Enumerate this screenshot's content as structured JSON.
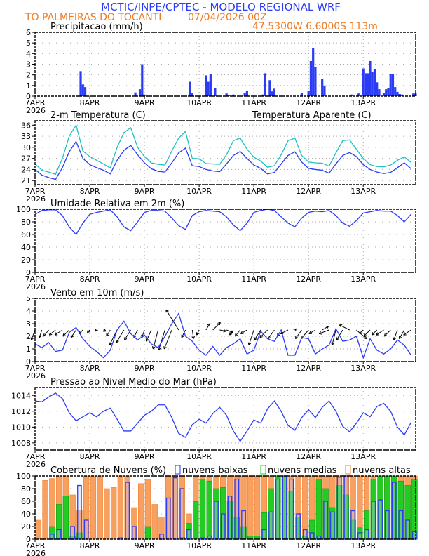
{
  "header": {
    "title": "MCTIC/INPE/CPTEC - MODELO REGIONAL WRF",
    "location": "TO PALMEIRAS DO TOCANTI",
    "run": "07/04/2026 00Z",
    "coords": "47.5300W 6.6000S 113m"
  },
  "colors": {
    "title": "#2a3cf5",
    "orange_text": "#f07a20",
    "blue": "#2a3cf5",
    "cyan": "#20c0c0",
    "green": "#22cc22",
    "orange": "#f7a060",
    "orange_edge": "#f08030"
  },
  "x_axis": {
    "labels": [
      "7APR",
      "8APR",
      "9APR",
      "10APR",
      "11APR",
      "12APR",
      "13APR"
    ],
    "label_hours": [
      0,
      24,
      48,
      72,
      96,
      120,
      144
    ],
    "year": "2026",
    "hours_total": 167
  },
  "chart_data": [
    {
      "id": "precip",
      "type": "bar",
      "title": "Precipitacao (mm/h)",
      "ylim": [
        0,
        6
      ],
      "y_ticks": [
        0,
        1,
        2,
        3,
        4,
        5,
        6
      ],
      "hours": [
        20,
        21,
        22,
        44,
        46,
        47,
        48,
        68,
        69,
        75,
        76,
        77,
        79,
        84,
        85,
        87,
        92,
        93,
        100,
        101,
        103,
        104,
        105,
        117,
        120,
        121,
        122,
        123,
        126,
        127,
        139,
        142,
        144,
        145,
        146,
        147,
        148,
        149,
        150,
        151,
        153,
        154,
        155,
        156,
        157,
        158,
        159,
        160,
        161,
        166,
        167
      ],
      "values": [
        2.35,
        1.1,
        0.85,
        0.35,
        0.65,
        3.0,
        0.15,
        1.35,
        0.3,
        1.95,
        1.35,
        2.1,
        0.75,
        0.25,
        0.1,
        0.15,
        0.3,
        0.5,
        0.15,
        2.15,
        1.5,
        0.45,
        0.7,
        0.3,
        0.5,
        3.3,
        4.55,
        2.75,
        1.65,
        1.0,
        0.15,
        0.25,
        2.6,
        2.15,
        2.15,
        3.3,
        2.3,
        2.55,
        1.3,
        0.65,
        0.3,
        0.65,
        0.75,
        2.05,
        2.05,
        0.85,
        0.4,
        0.2,
        0.15,
        0.25,
        0.25
      ]
    },
    {
      "id": "temp",
      "type": "line",
      "title": "2-m Temperatura (C)",
      "legend": "Temperatura Aparente (C)",
      "ylim": [
        19.9,
        37.2
      ],
      "y_ticks": [
        21,
        24,
        27,
        30,
        33,
        36
      ],
      "step_hours": 3,
      "series": [
        {
          "name": "Temperatura",
          "values": [
            24,
            22.5,
            21.8,
            21.3,
            24.5,
            28.8,
            31.6,
            27.0,
            25.3,
            24.5,
            23.8,
            22.8,
            26.5,
            29.2,
            30.5,
            28.0,
            25.8,
            24.2,
            23.5,
            23.3,
            25.8,
            28.5,
            29.8,
            25.0,
            24.8,
            24.0,
            23.6,
            23.4,
            25.5,
            27.8,
            28.9,
            27.0,
            25.2,
            24.3,
            22.8,
            23.2,
            25.5,
            27.8,
            28.8,
            26.0,
            24.3,
            24.0,
            23.8,
            23.0,
            25.5,
            27.8,
            28.6,
            27.5,
            25.3,
            24.0,
            23.3,
            22.9,
            23.2,
            24.5,
            25.8,
            24.2
          ]
        },
        {
          "name": "Temperatura Aparente",
          "values": [
            25.5,
            23.8,
            23.3,
            22.7,
            27,
            33,
            36,
            29,
            27.5,
            26.5,
            25.5,
            24.4,
            30,
            34,
            35.3,
            30,
            27.5,
            25.8,
            25.4,
            25.2,
            29,
            32.5,
            34.3,
            27,
            26.9,
            25.6,
            25.5,
            25.4,
            28,
            31.8,
            32.5,
            29.5,
            27.3,
            26.3,
            24.6,
            25,
            28,
            31.8,
            32.5,
            27.8,
            26,
            25.8,
            25.7,
            24.9,
            28.5,
            31.8,
            32,
            29.5,
            27,
            25.3,
            24.8,
            24.7,
            25.2,
            26.5,
            27.4,
            25.9
          ]
        }
      ]
    },
    {
      "id": "rh",
      "type": "line",
      "title": "Umidade Relativa em 2m (%)",
      "ylim": [
        0,
        100
      ],
      "y_ticks": [
        0,
        20,
        40,
        60,
        80,
        100
      ],
      "step_hours": 3,
      "series": [
        {
          "name": "Umidade",
          "values": [
            92,
            98,
            99,
            99,
            90,
            72,
            60,
            78,
            92,
            95,
            97,
            99,
            88,
            72,
            66,
            80,
            95,
            98,
            98,
            97,
            86,
            74,
            68,
            90,
            96,
            98,
            97,
            96,
            88,
            75,
            66,
            78,
            95,
            98,
            100,
            98,
            88,
            78,
            72,
            86,
            95,
            97,
            96,
            98,
            90,
            78,
            73,
            82,
            94,
            96,
            98,
            97,
            97,
            90,
            80,
            92
          ]
        }
      ]
    },
    {
      "id": "wind",
      "type": "line",
      "title": "Vento em 10m (m/s)",
      "ylim": [
        0,
        5
      ],
      "y_ticks": [
        0,
        1,
        2,
        3,
        4,
        5
      ],
      "step_hours": 3,
      "arrow_base": 2.5,
      "series": [
        {
          "name": "Velocidade",
          "values": [
            1.4,
            1.1,
            1.5,
            0.8,
            0.9,
            2.3,
            2.7,
            1.8,
            1.2,
            0.8,
            0.3,
            0.9,
            2.5,
            3.2,
            2.2,
            1.7,
            2.1,
            1.4,
            1.1,
            2.0,
            3.0,
            3.8,
            2.0,
            1.6,
            0.9,
            0.5,
            1.2,
            0.5,
            1.1,
            1.4,
            1.8,
            0.6,
            0.9,
            2.4,
            1.8,
            1.6,
            2.5,
            0.5,
            0.5,
            1.9,
            1.8,
            0.6,
            1.0,
            1.3,
            2.6,
            1.6,
            1.7,
            2.0,
            0.3,
            1.8,
            0.9,
            0.6,
            1.0,
            1.7,
            1.3,
            0.5
          ]
        }
      ],
      "u": [
        -0.3,
        -0.2,
        -0.4,
        -0.5,
        -0.6,
        -0.5,
        -0.4,
        -0.3,
        -0.2,
        -0.1,
        0.2,
        -0.3,
        -0.6,
        -0.6,
        -0.5,
        -0.3,
        -0.2,
        -0.4,
        -0.4,
        -0.5,
        -0.6,
        -1.0,
        -0.3,
        0.1,
        -0.2,
        0.3,
        0.6,
        0.5,
        0.5,
        -0.3,
        -0.4,
        -0.5,
        -0.4,
        -0.5,
        -0.6,
        -0.5,
        -0.3,
        -0.6,
        0.1,
        -0.5,
        -0.6,
        -0.5,
        0.5,
        -0.8,
        -0.3,
        -0.5,
        -0.8,
        0.8,
        -0.3,
        -0.5,
        -0.4,
        -0.6,
        -0.5,
        -0.3,
        -0.4,
        -0.6
      ],
      "v": [
        -0.8,
        -0.6,
        -0.5,
        -0.4,
        -0.4,
        -0.5,
        -0.6,
        -0.3,
        -0.2,
        -0.1,
        -0.1,
        -0.5,
        -1.2,
        -1.0,
        -0.8,
        -0.6,
        -0.6,
        -0.9,
        -1.5,
        -1.6,
        -1.5,
        1.6,
        -0.6,
        -0.7,
        -0.4,
        0.5,
        0.6,
        -0.1,
        -0.2,
        -0.4,
        -0.5,
        -0.3,
        -1.2,
        -0.8,
        -0.6,
        -0.7,
        -0.5,
        -0.3,
        0.1,
        -0.7,
        -0.7,
        -0.3,
        0.3,
        -0.3,
        -1.2,
        -0.8,
        0.4,
        -0.7,
        -0.3,
        -0.5,
        -0.4,
        -0.4,
        -0.5,
        -0.8,
        -0.7,
        -0.4
      ]
    },
    {
      "id": "pres",
      "type": "line",
      "title": "Pressao ao Nivel Medio do Mar (hPa)",
      "ylim": [
        1007.1,
        1015
      ],
      "y_ticks": [
        1008,
        1010,
        1012,
        1014
      ],
      "step_hours": 3,
      "series": [
        {
          "name": "Pressao",
          "values": [
            1013.3,
            1013.2,
            1013.8,
            1014.3,
            1013.6,
            1011.8,
            1010.8,
            1011.3,
            1011.8,
            1011.3,
            1012.0,
            1012.4,
            1011.0,
            1009.5,
            1009.5,
            1010.5,
            1011.5,
            1012.0,
            1012.8,
            1012.8,
            1011.2,
            1009.2,
            1008.7,
            1010.3,
            1011.0,
            1010.5,
            1011.7,
            1012.5,
            1011.5,
            1009.5,
            1008.2,
            1009.5,
            1010.9,
            1010.5,
            1012.3,
            1013.3,
            1012.0,
            1010.2,
            1009.6,
            1011.2,
            1012.2,
            1011.2,
            1012.5,
            1013.3,
            1012.0,
            1010.1,
            1009.4,
            1010.5,
            1011.8,
            1011.3,
            1012.6,
            1013.0,
            1012.0,
            1010.0,
            1009.0,
            1010.6
          ]
        }
      ]
    },
    {
      "id": "cloud",
      "type": "bar",
      "title": "Cobertura de Nuvens (%)",
      "ylim": [
        0,
        100
      ],
      "y_ticks": [
        0,
        20,
        40,
        60,
        80,
        100
      ],
      "step_hours": 3,
      "series": [
        {
          "name": "nuvens altas",
          "values": [
            30,
            93,
            96,
            100,
            100,
            70,
            45,
            100,
            100,
            100,
            80,
            82,
            100,
            100,
            50,
            88,
            95,
            55,
            35,
            100,
            100,
            100,
            40,
            100,
            100,
            100,
            100,
            100,
            100,
            100,
            100,
            100,
            100,
            100,
            100,
            100,
            100,
            100,
            100,
            100,
            100,
            100,
            100,
            100,
            100,
            100,
            100,
            100,
            100,
            100,
            100,
            100,
            100,
            100,
            100,
            100
          ]
        },
        {
          "name": "nuvens medias",
          "values": [
            0,
            0,
            20,
            55,
            68,
            5,
            10,
            0,
            0,
            0,
            0,
            0,
            0,
            0,
            0,
            0,
            20,
            0,
            0,
            0,
            0,
            3,
            25,
            60,
            95,
            92,
            80,
            82,
            60,
            35,
            20,
            5,
            5,
            42,
            80,
            100,
            100,
            75,
            35,
            5,
            30,
            95,
            80,
            50,
            85,
            70,
            30,
            18,
            45,
            95,
            100,
            100,
            100,
            92,
            85,
            95
          ]
        },
        {
          "name": "nuvens baixas",
          "values": [
            0,
            0,
            8,
            15,
            0,
            20,
            85,
            30,
            0,
            0,
            0,
            0,
            2,
            90,
            20,
            0,
            0,
            0,
            8,
            65,
            97,
            80,
            15,
            0,
            2,
            5,
            60,
            40,
            68,
            95,
            45,
            0,
            0,
            15,
            43,
            95,
            100,
            95,
            40,
            15,
            10,
            5,
            60,
            43,
            98,
            100,
            45,
            10,
            15,
            60,
            62,
            45,
            90,
            45,
            30,
            12
          ]
        }
      ]
    }
  ]
}
